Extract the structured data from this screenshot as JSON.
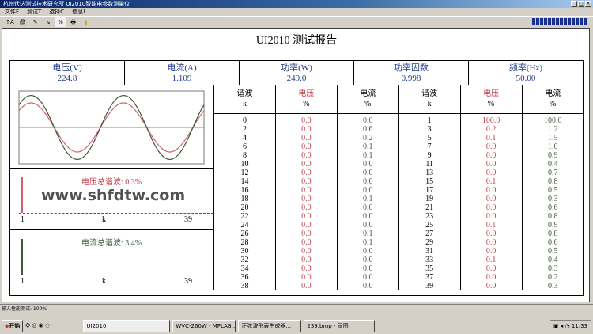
{
  "window": {
    "title": "杭州伏达测试技术研究所  UI2010智能电参数测量仪",
    "buttons": [
      "_",
      "□",
      "×"
    ]
  },
  "menu": [
    "文件F",
    "测试T",
    "选择C",
    "信息I"
  ],
  "toolbar": [
    "↑A",
    "🖨",
    "✎",
    "↘",
    "%",
    "🖶",
    "▮"
  ],
  "report": {
    "title": "UI2010 测试报告"
  },
  "summary": [
    {
      "label": "电压(V)",
      "value": "224.8"
    },
    {
      "label": "电流(A)",
      "value": "1.109"
    },
    {
      "label": "功率(W)",
      "value": "249.0"
    },
    {
      "label": "功率因数",
      "value": "0.998"
    },
    {
      "label": "频率(Hz)",
      "value": "50.00"
    }
  ],
  "waveform": {
    "colors": {
      "voltage": "#d06070",
      "current": "#3d5a3d"
    }
  },
  "voltage_spectrum": {
    "label": "电压总谐波: 0.3%",
    "axis_start": "1",
    "axis_mid": "k",
    "axis_end": "39"
  },
  "current_spectrum": {
    "label": "电流总谐波: 3.4%",
    "axis_start": "1",
    "axis_mid": "k",
    "axis_end": "39"
  },
  "table": {
    "headers": [
      [
        "谐波",
        "k"
      ],
      [
        "电压",
        "%"
      ],
      [
        "电流",
        "%"
      ],
      [
        "谐波",
        "k"
      ],
      [
        "电压",
        "%"
      ],
      [
        "电流",
        "%"
      ]
    ],
    "even": {
      "k": [
        "0",
        "2",
        "4",
        "6",
        "8",
        "10",
        "12",
        "14",
        "16",
        "18",
        "20",
        "22",
        "24",
        "26",
        "28",
        "30",
        "32",
        "34",
        "36",
        "38"
      ],
      "u": [
        "0.0",
        "0.0",
        "0.0",
        "0.0",
        "0.0",
        "0.0",
        "0.0",
        "0.0",
        "0.0",
        "0.0",
        "0.0",
        "0.0",
        "0.0",
        "0.0",
        "0.0",
        "0.0",
        "0.0",
        "0.0",
        "0.0",
        "0.0"
      ],
      "i": [
        "0.0",
        "0.6",
        "0.2",
        "0.1",
        "0.1",
        "0.0",
        "0.0",
        "0.0",
        "0.0",
        "0.1",
        "0.0",
        "0.0",
        "0.0",
        "0.1",
        "0.1",
        "0.0",
        "0.0",
        "0.0",
        "0.0",
        "0.0"
      ]
    },
    "odd": {
      "k": [
        "1",
        "3",
        "5",
        "7",
        "9",
        "11",
        "13",
        "15",
        "17",
        "19",
        "21",
        "23",
        "25",
        "27",
        "29",
        "31",
        "33",
        "35",
        "37",
        "39"
      ],
      "u": [
        "100.0",
        "0.2",
        "0.1",
        "0.0",
        "0.0",
        "0.0",
        "0.0",
        "0.1",
        "0.0",
        "0.0",
        "0.0",
        "0.0",
        "0.1",
        "0.0",
        "0.0",
        "0.0",
        "0.1",
        "0.0",
        "0.0",
        "0.0"
      ],
      "i": [
        "100.0",
        "1.2",
        "1.5",
        "1.0",
        "0.9",
        "0.4",
        "0.7",
        "0.8",
        "0.5",
        "0.3",
        "0.6",
        "0.8",
        "0.9",
        "0.8",
        "0.6",
        "0.5",
        "0.4",
        "0.3",
        "0.2",
        "0.3"
      ]
    }
  },
  "watermark": "www.shfdtw.com",
  "statusbar": "输入性能测试: 100%",
  "taskbar": {
    "start": "开始",
    "tasks": [
      "UI2010",
      "WVC-260W - MPLAB...",
      "正弦波形表生成器...",
      "239.bmp - 画图"
    ],
    "clock": "11:33"
  }
}
